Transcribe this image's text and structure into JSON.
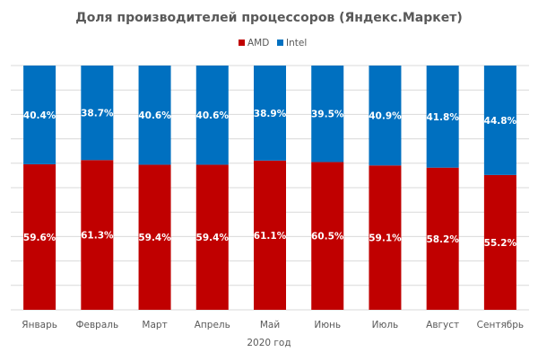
{
  "chart_data": {
    "type": "bar",
    "stacked": true,
    "percent": true,
    "title": "Доля производителей процессоров (Яндекс.Маркет)",
    "xlabel": "2020 год",
    "ylabel": "",
    "ylim": [
      0,
      100
    ],
    "grid": true,
    "legend_position": "top",
    "categories": [
      "Январь",
      "Февраль",
      "Март",
      "Апрель",
      "Май",
      "Июнь",
      "Июль",
      "Август",
      "Сентябрь"
    ],
    "series": [
      {
        "name": "AMD",
        "color": "#C00000",
        "values": [
          59.6,
          61.3,
          59.4,
          59.4,
          61.1,
          60.5,
          59.1,
          58.2,
          55.2
        ],
        "labels": [
          "59.6%",
          "61.3%",
          "59.4%",
          "59.4%",
          "61.1%",
          "60.5%",
          "59.1%",
          "58.2%",
          "55.2%"
        ]
      },
      {
        "name": "Intel",
        "color": "#0070C0",
        "values": [
          40.4,
          38.7,
          40.6,
          40.6,
          38.9,
          39.5,
          40.9,
          41.8,
          44.8
        ],
        "labels": [
          "40.4%",
          "38.7%",
          "40.6%",
          "40.6%",
          "38.9%",
          "39.5%",
          "40.9%",
          "41.8%",
          "44.8%"
        ]
      }
    ]
  }
}
